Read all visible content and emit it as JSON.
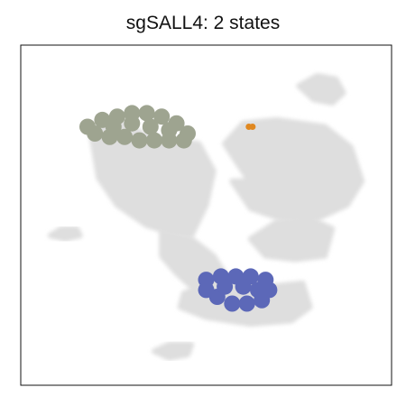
{
  "chart_data": {
    "type": "scatter",
    "title": "sgSALL4: 2 states",
    "xlabel": "",
    "ylabel": "",
    "xlim": [
      0,
      100
    ],
    "ylim": [
      0,
      100
    ],
    "axis_ticks": false,
    "grid": false,
    "background_color": "#dedede",
    "background_regions": [
      {
        "name": "upper-left-blob",
        "points": [
          [
            19,
            74
          ],
          [
            25,
            78
          ],
          [
            35,
            73
          ],
          [
            48,
            71
          ],
          [
            52,
            63
          ],
          [
            50,
            53
          ],
          [
            46,
            44
          ],
          [
            40,
            45
          ],
          [
            34,
            47
          ],
          [
            26,
            53
          ],
          [
            21,
            61
          ]
        ]
      },
      {
        "name": "right-arc",
        "points": [
          [
            55,
            71
          ],
          [
            60,
            77
          ],
          [
            69,
            78
          ],
          [
            82,
            76
          ],
          [
            89,
            70
          ],
          [
            92,
            60
          ],
          [
            88,
            53
          ],
          [
            80,
            49
          ],
          [
            70,
            49
          ],
          [
            62,
            52
          ],
          [
            57,
            60
          ],
          [
            66,
            60
          ],
          [
            74,
            63
          ],
          [
            82,
            64
          ],
          [
            83,
            58
          ],
          [
            78,
            55
          ],
          [
            70,
            56
          ],
          [
            63,
            58
          ],
          [
            58,
            66
          ]
        ]
      },
      {
        "name": "top-right-ring",
        "points": [
          [
            75,
            88
          ],
          [
            80,
            91
          ],
          [
            85,
            90
          ],
          [
            87,
            86
          ],
          [
            84,
            83
          ],
          [
            79,
            84
          ]
        ]
      },
      {
        "name": "middle-stem",
        "points": [
          [
            38,
            45
          ],
          [
            46,
            43
          ],
          [
            52,
            38
          ],
          [
            56,
            31
          ],
          [
            54,
            25
          ],
          [
            47,
            28
          ],
          [
            42,
            33
          ],
          [
            38,
            38
          ]
        ]
      },
      {
        "name": "lower-right-blob",
        "points": [
          [
            44,
            27
          ],
          [
            55,
            32
          ],
          [
            67,
            29
          ],
          [
            76,
            30
          ],
          [
            78,
            23
          ],
          [
            73,
            19
          ],
          [
            62,
            18
          ],
          [
            50,
            20
          ],
          [
            43,
            23
          ]
        ]
      },
      {
        "name": "mid-right-cluster",
        "points": [
          [
            62,
            43
          ],
          [
            69,
            48
          ],
          [
            78,
            49
          ],
          [
            84,
            46
          ],
          [
            82,
            38
          ],
          [
            74,
            37
          ],
          [
            66,
            38
          ]
        ]
      },
      {
        "name": "left-islet",
        "points": [
          [
            8,
            44
          ],
          [
            11,
            46
          ],
          [
            15,
            46
          ],
          [
            16,
            44
          ],
          [
            12,
            43
          ]
        ]
      },
      {
        "name": "bottom-islet",
        "points": [
          [
            36,
            10
          ],
          [
            40,
            12
          ],
          [
            46,
            12
          ],
          [
            45,
            9
          ],
          [
            40,
            8
          ]
        ]
      }
    ],
    "series": [
      {
        "color": "#9ea490",
        "points": [
          [
            18,
            76
          ],
          [
            22,
            78
          ],
          [
            26,
            79
          ],
          [
            30,
            80
          ],
          [
            34,
            80
          ],
          [
            38,
            79
          ],
          [
            42,
            77
          ],
          [
            45,
            74
          ],
          [
            44,
            72
          ],
          [
            40,
            72
          ],
          [
            36,
            72
          ],
          [
            32,
            72
          ],
          [
            28,
            73
          ],
          [
            24,
            73
          ],
          [
            20,
            74
          ],
          [
            25,
            76
          ],
          [
            30,
            77
          ],
          [
            35,
            76
          ],
          [
            40,
            75
          ]
        ]
      },
      {
        "color": "#e08820",
        "points": [
          [
            61.5,
            76
          ],
          [
            62.5,
            76
          ]
        ]
      },
      {
        "color": "#5c68b8",
        "points": [
          [
            50,
            31
          ],
          [
            54,
            32
          ],
          [
            58,
            32
          ],
          [
            62,
            32
          ],
          [
            66,
            31
          ],
          [
            67,
            28
          ],
          [
            65,
            25
          ],
          [
            61,
            24
          ],
          [
            57,
            24
          ],
          [
            53,
            26
          ],
          [
            50,
            28
          ],
          [
            55,
            29
          ],
          [
            60,
            29
          ],
          [
            64,
            28
          ]
        ]
      }
    ]
  }
}
